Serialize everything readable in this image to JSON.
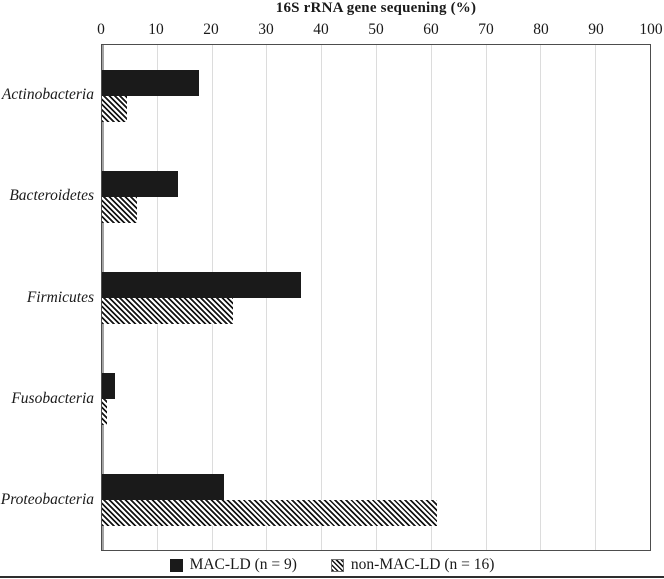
{
  "chart_data": {
    "type": "bar",
    "orientation": "horizontal",
    "title": "16S rRNA gene sequening (%)",
    "categories": [
      "Actinobacteria",
      "Bacteroidetes",
      "Firmicutes",
      "Fusobacteria",
      "Proteobacteria"
    ],
    "series": [
      {
        "name": "MAC-LD (n = 9)",
        "style": "solid-black",
        "color": "#1a1a1a",
        "values": [
          17.7,
          13.9,
          36.4,
          2.4,
          22.2
        ]
      },
      {
        "name": "non-MAC-LD (n = 16)",
        "style": "diagonal-hatch",
        "color": "#141414",
        "values": [
          4.5,
          6.4,
          23.9,
          1.0,
          61.2
        ]
      }
    ],
    "xlim": [
      0,
      100
    ],
    "x_ticks": [
      0,
      10,
      20,
      30,
      40,
      50,
      60,
      70,
      80,
      90,
      100
    ],
    "axis_position": "top",
    "grid": "vertical-light-gray",
    "gridline_color": "#dcdcdc",
    "plot_border_color": "#4d4d4d",
    "legend_position": "bottom"
  }
}
